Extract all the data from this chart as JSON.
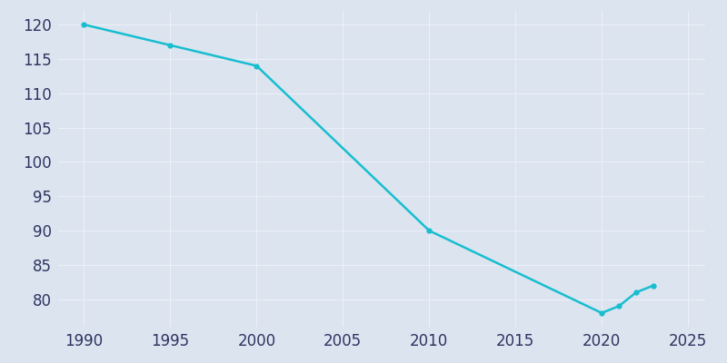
{
  "years": [
    1990,
    1995,
    2000,
    2010,
    2020,
    2021,
    2022,
    2023
  ],
  "population": [
    120,
    117,
    114,
    90,
    78,
    79,
    81,
    82
  ],
  "line_color": "#17becf",
  "marker": "o",
  "marker_size": 3.5,
  "background_color": "#dce4f0",
  "grid_color": "#edf0f7",
  "xlim": [
    1988.5,
    2026
  ],
  "ylim": [
    76,
    122
  ],
  "xticks": [
    1990,
    1995,
    2000,
    2005,
    2010,
    2015,
    2020,
    2025
  ],
  "yticks": [
    80,
    85,
    90,
    95,
    100,
    105,
    110,
    115,
    120
  ],
  "tick_color": "#2d3561",
  "tick_fontsize": 12,
  "figsize": [
    8.0,
    4.0
  ],
  "dpi": 100
}
